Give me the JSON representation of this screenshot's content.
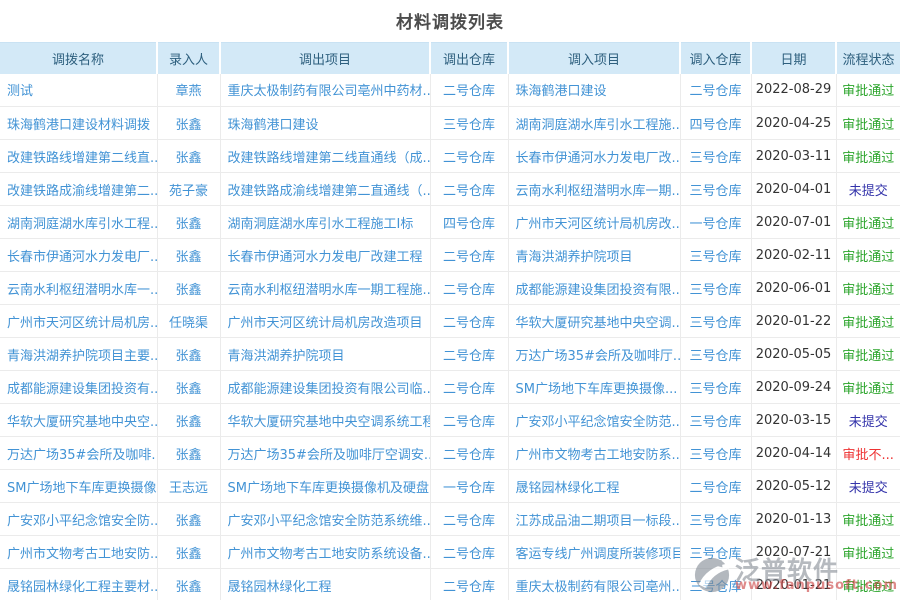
{
  "page_title": "材料调拨列表",
  "colors": {
    "header_bg": "#d3e9f7",
    "header_text": "#2d5f7e",
    "link_text": "#4293d5",
    "date_text": "#333333",
    "status_approved": "#2ca52c",
    "status_not_submitted": "#3333aa",
    "status_rejected": "#ee3333",
    "row_border": "#ebebeb"
  },
  "table": {
    "columns": [
      {
        "key": "name",
        "label": "调拨名称",
        "align": "left"
      },
      {
        "key": "entered_by",
        "label": "录入人",
        "align": "center"
      },
      {
        "key": "out_project",
        "label": "调出项目",
        "align": "left"
      },
      {
        "key": "out_warehouse",
        "label": "调出仓库",
        "align": "center"
      },
      {
        "key": "in_project",
        "label": "调入项目",
        "align": "left"
      },
      {
        "key": "in_warehouse",
        "label": "调入仓库",
        "align": "center"
      },
      {
        "key": "date",
        "label": "日期",
        "align": "center"
      },
      {
        "key": "status",
        "label": "流程状态",
        "align": "center"
      }
    ],
    "rows": [
      {
        "name": "测试",
        "entered_by": "章燕",
        "out_project": "重庆太极制药有限公司亳州中药材...",
        "out_warehouse": "二号仓库",
        "in_project": "珠海鹤港口建设",
        "in_warehouse": "二号仓库",
        "date": "2022-08-29",
        "status": "审批通过",
        "status_type": "approved"
      },
      {
        "name": "珠海鹤港口建设材料调拨",
        "entered_by": "张鑫",
        "out_project": "珠海鹤港口建设",
        "out_warehouse": "三号仓库",
        "in_project": "湖南洞庭湖水库引水工程施...",
        "in_warehouse": "四号仓库",
        "date": "2020-04-25",
        "status": "审批通过",
        "status_type": "approved"
      },
      {
        "name": "改建铁路线增建第二线直...",
        "entered_by": "张鑫",
        "out_project": "改建铁路线增建第二线直通线（成...",
        "out_warehouse": "二号仓库",
        "in_project": "长春市伊通河水力发电厂改...",
        "in_warehouse": "三号仓库",
        "date": "2020-03-11",
        "status": "审批通过",
        "status_type": "approved"
      },
      {
        "name": "改建铁路成渝线增建第二...",
        "entered_by": "苑子豪",
        "out_project": "改建铁路成渝线增建第二直通线（...",
        "out_warehouse": "二号仓库",
        "in_project": "云南水利枢纽潜明水库一期...",
        "in_warehouse": "三号仓库",
        "date": "2020-04-01",
        "status": "未提交",
        "status_type": "not_submitted"
      },
      {
        "name": "湖南洞庭湖水库引水工程...",
        "entered_by": "张鑫",
        "out_project": "湖南洞庭湖水库引水工程施工I标",
        "out_warehouse": "四号仓库",
        "in_project": "广州市天河区统计局机房改...",
        "in_warehouse": "一号仓库",
        "date": "2020-07-01",
        "status": "审批通过",
        "status_type": "approved"
      },
      {
        "name": "长春市伊通河水力发电厂...",
        "entered_by": "张鑫",
        "out_project": "长春市伊通河水力发电厂改建工程",
        "out_warehouse": "二号仓库",
        "in_project": "青海洪湖养护院项目",
        "in_warehouse": "三号仓库",
        "date": "2020-02-11",
        "status": "审批通过",
        "status_type": "approved"
      },
      {
        "name": "云南水利枢纽潜明水库一...",
        "entered_by": "张鑫",
        "out_project": "云南水利枢纽潜明水库一期工程施...",
        "out_warehouse": "二号仓库",
        "in_project": "成都能源建设集团投资有限...",
        "in_warehouse": "三号仓库",
        "date": "2020-06-01",
        "status": "审批通过",
        "status_type": "approved"
      },
      {
        "name": "广州市天河区统计局机房...",
        "entered_by": "任晓渠",
        "out_project": "广州市天河区统计局机房改造项目",
        "out_warehouse": "二号仓库",
        "in_project": "华软大厦研究基地中央空调...",
        "in_warehouse": "三号仓库",
        "date": "2020-01-22",
        "status": "审批通过",
        "status_type": "approved"
      },
      {
        "name": "青海洪湖养护院项目主要...",
        "entered_by": "张鑫",
        "out_project": "青海洪湖养护院项目",
        "out_warehouse": "二号仓库",
        "in_project": "万达广场35#会所及咖啡厅...",
        "in_warehouse": "三号仓库",
        "date": "2020-05-05",
        "status": "审批通过",
        "status_type": "approved"
      },
      {
        "name": "成都能源建设集团投资有...",
        "entered_by": "张鑫",
        "out_project": "成都能源建设集团投资有限公司临...",
        "out_warehouse": "二号仓库",
        "in_project": "SM广场地下车库更换摄像...",
        "in_warehouse": "三号仓库",
        "date": "2020-09-24",
        "status": "审批通过",
        "status_type": "approved"
      },
      {
        "name": "华软大厦研究基地中央空...",
        "entered_by": "张鑫",
        "out_project": "华软大厦研究基地中央空调系统工程",
        "out_warehouse": "二号仓库",
        "in_project": "广安邓小平纪念馆安全防范...",
        "in_warehouse": "三号仓库",
        "date": "2020-03-15",
        "status": "未提交",
        "status_type": "not_submitted"
      },
      {
        "name": "万达广场35#会所及咖啡...",
        "entered_by": "张鑫",
        "out_project": "万达广场35#会所及咖啡厅空调安...",
        "out_warehouse": "二号仓库",
        "in_project": "广州市文物考古工地安防系...",
        "in_warehouse": "三号仓库",
        "date": "2020-04-14",
        "status": "审批不...",
        "status_type": "rejected"
      },
      {
        "name": "SM广场地下车库更换摄像...",
        "entered_by": "王志远",
        "out_project": "SM广场地下车库更换摄像机及硬盘...",
        "out_warehouse": "一号仓库",
        "in_project": "晟铭园林绿化工程",
        "in_warehouse": "二号仓库",
        "date": "2020-05-12",
        "status": "未提交",
        "status_type": "not_submitted"
      },
      {
        "name": "广安邓小平纪念馆安全防...",
        "entered_by": "张鑫",
        "out_project": "广安邓小平纪念馆安全防范系统维...",
        "out_warehouse": "二号仓库",
        "in_project": "江苏成品油二期项目一标段...",
        "in_warehouse": "三号仓库",
        "date": "2020-01-13",
        "status": "审批通过",
        "status_type": "approved"
      },
      {
        "name": "广州市文物考古工地安防...",
        "entered_by": "张鑫",
        "out_project": "广州市文物考古工地安防系统设备...",
        "out_warehouse": "二号仓库",
        "in_project": "客运专线广州调度所装修项目",
        "in_warehouse": "三号仓库",
        "date": "2020-07-21",
        "status": "审批通过",
        "status_type": "approved"
      },
      {
        "name": "晟铭园林绿化工程主要材...",
        "entered_by": "张鑫",
        "out_project": "晟铭园林绿化工程",
        "out_warehouse": "二号仓库",
        "in_project": "重庆太极制药有限公司亳州...",
        "in_warehouse": "三号仓库",
        "date": "2020-01-21",
        "status": "审批通过",
        "status_type": "approved"
      }
    ]
  },
  "watermark": {
    "brand": "泛普软件",
    "url": "www.fanpusoft.com"
  }
}
